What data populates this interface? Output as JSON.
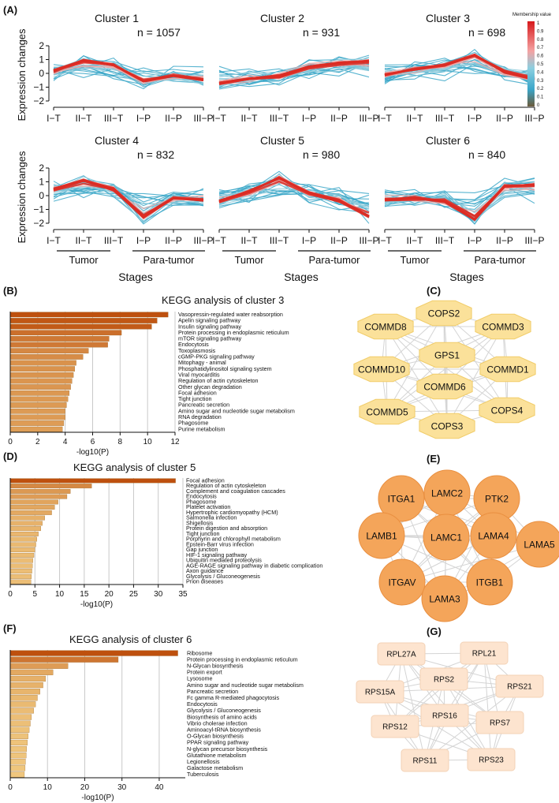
{
  "panel_labels": {
    "a": "(A)",
    "b": "(B)",
    "c": "(C)",
    "d": "(D)",
    "e": "(E)",
    "f": "(F)",
    "g": "(G)"
  },
  "clusters": {
    "ylabel": "Expression changes",
    "xlabel": "Stages",
    "stage_labels": [
      "I−T",
      "II−T",
      "III−T",
      "I−P",
      "II−P",
      "III−P"
    ],
    "group_tumor": "Tumor",
    "group_para": "Para-tumor",
    "yticks": [
      "2",
      "1",
      "0",
      "−1",
      "−2"
    ],
    "colorbar_title": "Membership value",
    "colorbar_ticks": [
      "1",
      "0.9",
      "0.8",
      "0.7",
      "0.6",
      "0.5",
      "0.4",
      "0.3",
      "0.2",
      "0.1",
      "0"
    ],
    "items": [
      {
        "title": "Cluster 1",
        "n": "n = 1057",
        "profile": [
          0.2,
          0.9,
          0.6,
          -0.6,
          -0.2,
          -0.5
        ]
      },
      {
        "title": "Cluster 2",
        "n": "n = 931",
        "profile": [
          -0.7,
          -0.4,
          -0.2,
          0.5,
          0.8,
          0.9
        ]
      },
      {
        "title": "Cluster 3",
        "n": "n = 698",
        "profile": [
          -0.1,
          0.3,
          0.6,
          1.3,
          0.1,
          -0.4
        ]
      },
      {
        "title": "Cluster 4",
        "n": "n = 832",
        "profile": [
          0.5,
          1.1,
          0.5,
          -1.6,
          -0.2,
          -0.3
        ]
      },
      {
        "title": "Cluster 5",
        "n": "n = 980",
        "profile": [
          -0.4,
          0.3,
          1.3,
          0.2,
          -0.4,
          -1.5
        ]
      },
      {
        "title": "Cluster 6",
        "n": "n = 840",
        "profile": [
          -0.3,
          -0.2,
          -0.4,
          -1.7,
          0.7,
          0.8
        ]
      }
    ]
  },
  "chart_data": [
    {
      "type": "bar",
      "title": "KEGG analysis of cluster 3",
      "xlabel": "-log10(P)",
      "xlim": [
        0,
        12
      ],
      "xticks": [
        0,
        2,
        4,
        6,
        8,
        10,
        12
      ],
      "categories": [
        "Vasopressin-regulated water reabsorption",
        "Apelin signaling pathway",
        "Insulin signaling pathway",
        "Protein processing in endoplasmic reticulum",
        "mTOR signaling pathway",
        "Endocytosis",
        "Toxoplasmosis",
        "cGMP-PKG signaling pathway",
        "Mitophagy - animal",
        "Phosphatidylinositol signaling system",
        "Viral myocarditis",
        "Regulation of actin cytoskeleton",
        "Other glycan degradation",
        "Focal adhesion",
        "Tight junction",
        "Pancreatic secretion",
        "Amino sugar and nucleotide sugar metabolism",
        "RNA degradation",
        "Phagosome",
        "Purine metabolism"
      ],
      "values": [
        11.5,
        10.7,
        10.3,
        8.1,
        7.2,
        7.1,
        5.7,
        5.3,
        4.8,
        4.7,
        4.6,
        4.5,
        4.4,
        4.3,
        4.2,
        4.1,
        4.0,
        4.0,
        3.9,
        3.8
      ]
    },
    {
      "type": "bar",
      "title": "KEGG analysis of cluster 5",
      "xlabel": "-log10(P)",
      "xlim": [
        0,
        35
      ],
      "xticks": [
        0,
        5,
        10,
        15,
        20,
        25,
        30,
        35
      ],
      "categories": [
        "Focal adhesion",
        "Regulation of actin cytoskeleton",
        "Complement and coagulation cascades",
        "Endocytosis",
        "Phagosome",
        "Platelet activation",
        "Hypertrophic cardiomyopathy (HCM)",
        "Salmonella infection",
        "Shigellosis",
        "Protein digestion and absorption",
        "Tight junction",
        "Porphyrin and chlorophyll metabolism",
        "Epstein-Barr virus infection",
        "Gap junction",
        "HIF-1 signaling pathway",
        "Ubiquitin mediated proteolysis",
        "AGE-RAGE signaling pathway in diabetic complication",
        "Axon guidance",
        "Glycolysis / Gluconeogenesis",
        "Prion diseases"
      ],
      "values": [
        33.5,
        16.5,
        12.2,
        11.5,
        9.7,
        9.0,
        8.4,
        7.0,
        6.5,
        6.2,
        5.7,
        5.4,
        5.2,
        5.0,
        4.8,
        4.6,
        4.5,
        4.4,
        4.3,
        4.2
      ]
    },
    {
      "type": "bar",
      "title": "KEGG analysis of cluster 6",
      "xlabel": "-log10(P)",
      "xlim": [
        0,
        47
      ],
      "xticks": [
        0,
        10,
        20,
        30,
        40
      ],
      "categories": [
        "Ribosome",
        "Protein processing in endoplasmic reticulum",
        "N-Glycan biosynthesis",
        "Protein export",
        "Lysosome",
        "Amino sugar and nucleotide sugar metabolism",
        "Pancreatic secretion",
        "Fc gamma R-mediated phagocytosis",
        "Endocytosis",
        "Glycolysis / Gluconeogenesis",
        "Biosynthesis of amino acids",
        "Vibrio cholerae infection",
        "Aminoacyl-tRNA biosynthesis",
        "O-Glycan biosynthesis",
        "PPAR signaling pathway",
        "N-glycan precursor biosynthesis",
        "Glutathione metabolism",
        "Legionellosis",
        "Galactose metabolism",
        "Tuberculosis"
      ],
      "values": [
        45,
        29,
        15.5,
        11.5,
        9.5,
        8.8,
        8.0,
        7.3,
        6.8,
        6.3,
        5.7,
        5.4,
        5.1,
        4.8,
        4.6,
        4.4,
        4.3,
        4.1,
        4.0,
        3.8
      ]
    }
  ],
  "networks": {
    "c": {
      "nodes": [
        "COPS2",
        "COMMD8",
        "COMMD3",
        "GPS1",
        "COMMD10",
        "COMMD1",
        "COMMD6",
        "COMMD5",
        "COPS4",
        "COPS3"
      ],
      "fill": "#fbe19a",
      "stroke": "#f1cd6a"
    },
    "e": {
      "nodes": [
        "LAMC2",
        "ITGA1",
        "PTK2",
        "LAMB1",
        "LAMC1",
        "LAMA4",
        "LAMA5",
        "ITGAV",
        "ITGB1",
        "LAMA3"
      ],
      "fill": "#f4a55a",
      "stroke": "#e98f40"
    },
    "g": {
      "nodes": [
        "RPL27A",
        "RPL21",
        "RPS2",
        "RPS15A",
        "RPS21",
        "RPS16",
        "RPS12",
        "RPS7",
        "RPS11",
        "RPS23"
      ],
      "fill": "#fde4cf",
      "stroke": "#f3d2b6"
    }
  }
}
